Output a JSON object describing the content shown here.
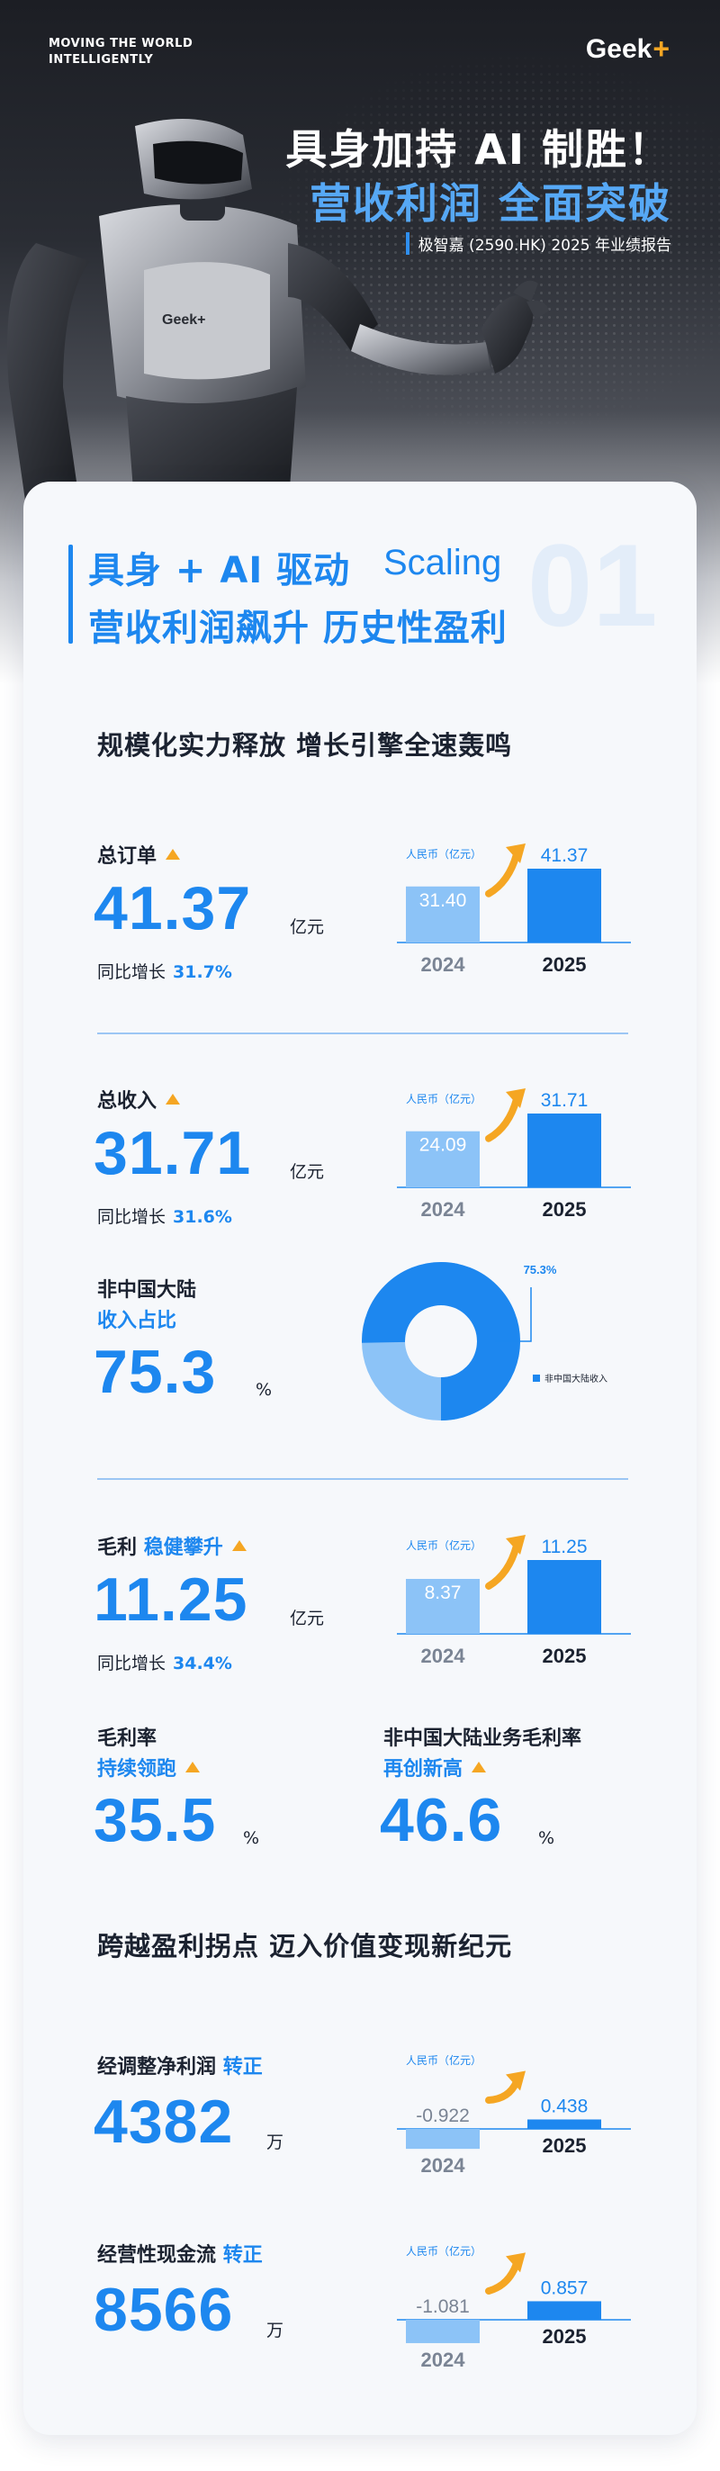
{
  "hero": {
    "tagline_1": "MOVING THE WORLD",
    "tagline_2": "INTELLIGENTLY",
    "logo_text": "Geek",
    "logo_plus": "+",
    "robot_badge": "Geek+",
    "title_1": "具身加持 AI 制胜！",
    "title_2": "营收利润 全面突破",
    "subtitle": "极智嘉 (2590.HK) 2025 年业绩报告"
  },
  "section": {
    "line_1": "具身 + AI 驱动",
    "en": "Scaling",
    "number": "01",
    "line_2": "营收利润飙升 历史性盈利"
  },
  "heading_1": "规模化实力释放 增长引擎全速轰鸣",
  "orders": {
    "label": "总订单",
    "value": "41.37",
    "unit": "亿元",
    "growth_label": "同比增长",
    "growth": "31.7%",
    "chart": {
      "unit": "人民币（亿元）",
      "v2024": 31.4,
      "v2025": 41.37,
      "label2024": "31.40",
      "label2025": "41.37",
      "year_a": "2024",
      "year_b": "2025"
    }
  },
  "revenue": {
    "label": "总收入",
    "value": "31.71",
    "unit": "亿元",
    "growth_label": "同比增长",
    "growth": "31.6%",
    "chart": {
      "unit": "人民币（亿元）",
      "v2024": 24.09,
      "v2025": 31.71,
      "label2024": "24.09",
      "label2025": "31.71",
      "year_a": "2024",
      "year_b": "2025"
    }
  },
  "overseas_share": {
    "label_1": "非中国大陆",
    "label_2": "收入占比",
    "value": "75.3",
    "unit": "%",
    "share": 75.3,
    "pct_label": "75.3%",
    "legend": "非中国大陆收入",
    "color_main": "#1d87ef",
    "color_rest": "#8cc3f7"
  },
  "gross_profit": {
    "label": "毛利",
    "label_accent": "稳健攀升",
    "value": "11.25",
    "unit": "亿元",
    "growth_label": "同比增长",
    "growth": "34.4%",
    "chart": {
      "unit": "人民币（亿元）",
      "v2024": 8.37,
      "v2025": 11.25,
      "label2024": "8.37",
      "label2025": "11.25",
      "year_a": "2024",
      "year_b": "2025"
    }
  },
  "margin": {
    "label": "毛利率",
    "label_accent": "持续领跑",
    "value": "35.5",
    "unit": "%"
  },
  "overseas_margin": {
    "label": "非中国大陆业务毛利率",
    "label_accent": "再创新高",
    "value": "46.6",
    "unit": "%"
  },
  "heading_2": "跨越盈利拐点 迈入价值变现新纪元",
  "adj_profit": {
    "label": "经调整净利润",
    "label_accent": "转正",
    "value": "4382",
    "unit": "万",
    "chart": {
      "unit": "人民币（亿元）",
      "v2024": -0.922,
      "v2025": 0.438,
      "label2024": "-0.922",
      "label2025": "0.438",
      "year_a": "2024",
      "year_b": "2025"
    }
  },
  "cash_flow": {
    "label": "经营性现金流",
    "label_accent": "转正",
    "value": "8566",
    "unit": "万",
    "chart": {
      "unit": "人民币（亿元）",
      "v2024": -1.081,
      "v2025": 0.857,
      "label2024": "-1.081",
      "label2025": "0.857",
      "year_a": "2024",
      "year_b": "2025"
    }
  },
  "colors": {
    "accent": "#1d87ef",
    "bar_light": "#8cc3f7",
    "arrow": "#f5a623"
  }
}
